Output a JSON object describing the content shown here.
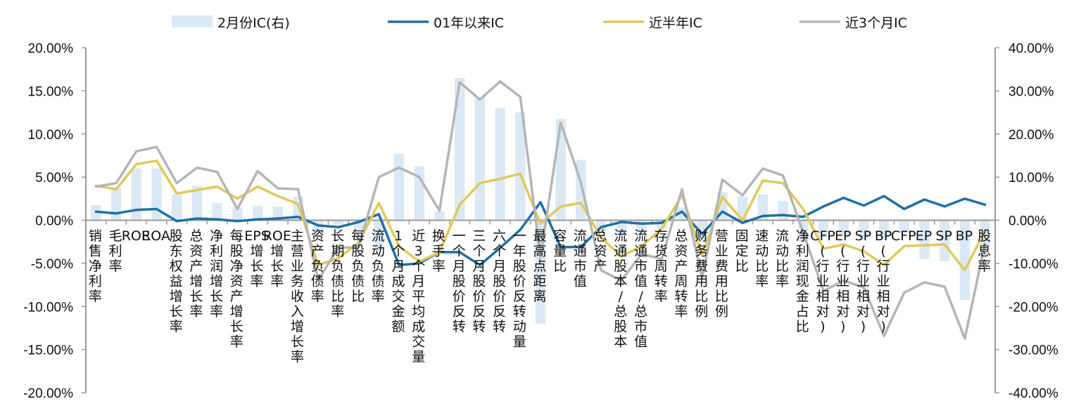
{
  "chart_data": {
    "type": "bar+line",
    "title": "",
    "colors": {
      "bar": "#dbe9f6",
      "ic_all": "#1f6fa5",
      "ic_half": "#e1c95a",
      "ic_3m": "#b5b5b5",
      "axis": "#999999"
    },
    "y_left": {
      "ticks": [
        20,
        15,
        10,
        5,
        0,
        -5,
        -10,
        -15,
        -20
      ],
      "tick_labels": [
        "20.00%",
        "15.00%",
        "10.00%",
        "5.00%",
        "0.00%",
        "-5.00%",
        "-10.00%",
        "-15.00%",
        "-20.00%"
      ],
      "range": [
        -20,
        20
      ]
    },
    "y_right": {
      "ticks": [
        40,
        30,
        20,
        10,
        0,
        -10,
        -20,
        -30,
        -40
      ],
      "tick_labels": [
        "40.00%",
        "30.00%",
        "20.00%",
        "10.00%",
        "0.00%",
        "-10.00%",
        "-20.00%",
        "-30.00%",
        "-40.00%"
      ],
      "range": [
        -40,
        40
      ]
    },
    "categories": [
      "销售净利率",
      "毛利率",
      "ROE",
      "ROA",
      "股东权益增长率",
      "总资产增长率",
      "净利润增长率",
      "每股净资产增长率",
      "EPS增长率",
      "ROE增长率",
      "主营业务收入增长率",
      "资产负债率",
      "长期负债比率",
      "每股负债比",
      "流动负债率",
      "1个月成交金额",
      "近3个月平均成交量",
      "换手率",
      "一个月股价反转",
      "三个月股价反转",
      "六个月股价反转",
      "一年股价反转动量",
      "最高点距离",
      "容量比",
      "流通市值",
      "总资产",
      "流通股本/总股本",
      "流通市值/总市值",
      "存货周转率",
      "总资产周转率",
      "财务费用比例",
      "营业费用比例",
      "固定比",
      "速动比率",
      "流动比率",
      "净利润现金占比",
      "CFP(行业相对)",
      "EP(行业相对)",
      "SP(行业相对)",
      "BP(行业相对)",
      "CFP",
      "EP",
      "SP",
      "BP",
      "股息率"
    ],
    "series": [
      {
        "name": "2月份IC(右)",
        "type": "bar",
        "axis": "right",
        "values": [
          3.5,
          7.5,
          12,
          12,
          6,
          8,
          4,
          3,
          3.3,
          3.2,
          5.5,
          -3,
          -1,
          -2,
          -7,
          15.5,
          12.5,
          2,
          33,
          28.5,
          26,
          25,
          -24,
          23.5,
          14,
          -2.5,
          -3.5,
          -3,
          -2,
          3,
          -5,
          6.5,
          5.5,
          6,
          4.5,
          -5,
          -4,
          -3.5,
          -4,
          -4,
          -3,
          -9,
          -9.5,
          -18.5,
          -6
        ]
      },
      {
        "name": "01年以来IC",
        "type": "line",
        "axis": "left",
        "values": [
          1.0,
          0.8,
          1.2,
          1.3,
          -0.1,
          0.2,
          0.1,
          -0.1,
          0.1,
          0.2,
          0.4,
          -0.6,
          -0.8,
          -0.2,
          0.7,
          -5.2,
          -5.0,
          -3.7,
          -3.7,
          -5.2,
          -3.2,
          -1.1,
          2.1,
          -3.1,
          -3.1,
          -0.8,
          -0.2,
          -0.4,
          -0.3,
          1.0,
          -1.6,
          1.0,
          -0.3,
          0.5,
          0.6,
          0.4,
          1.6,
          2.6,
          1.7,
          2.8,
          1.3,
          2.4,
          1.6,
          2.5,
          1.8
        ]
      },
      {
        "name": "近半年IC",
        "type": "line",
        "axis": "left",
        "values": [
          4.0,
          3.6,
          6.5,
          6.9,
          3.1,
          3.5,
          3.9,
          2.5,
          3.9,
          2.8,
          1.9,
          -5.2,
          -4.4,
          -2.6,
          2.0,
          -3.0,
          -4.8,
          -3.7,
          1.8,
          4.3,
          4.8,
          5.4,
          -0.4,
          1.6,
          2.0,
          -2.0,
          -4.2,
          -3.0,
          -1.0,
          2.9,
          -4.1,
          2.7,
          0.0,
          4.6,
          4.3,
          1.3,
          -3.3,
          -2.8,
          -3.6,
          -5.2,
          -3.0,
          -2.9,
          -2.8,
          -5.8,
          -1.2
        ]
      },
      {
        "name": "近3个月IC",
        "type": "line",
        "axis": "left",
        "values": [
          3.9,
          4.3,
          8.0,
          8.5,
          4.3,
          6.1,
          5.6,
          1.3,
          5.7,
          3.7,
          3.6,
          -6.9,
          -3.2,
          -3.1,
          5.0,
          6.1,
          5.0,
          1.1,
          16.0,
          14.0,
          16.1,
          14.3,
          -4.3,
          11.3,
          4.4,
          -5.8,
          -7.0,
          -3.9,
          -4.5,
          3.6,
          -6.6,
          4.7,
          2.9,
          6.0,
          5.2,
          -1.4,
          -8.2,
          -7.0,
          -7.8,
          -13.4,
          -8.4,
          -7.2,
          -7.7,
          -13.7,
          -2.7
        ]
      }
    ],
    "legend": {
      "position": "top",
      "entries": [
        "2月份IC(右)",
        "01年以来IC",
        "近半年IC",
        "近3个月IC"
      ]
    }
  }
}
